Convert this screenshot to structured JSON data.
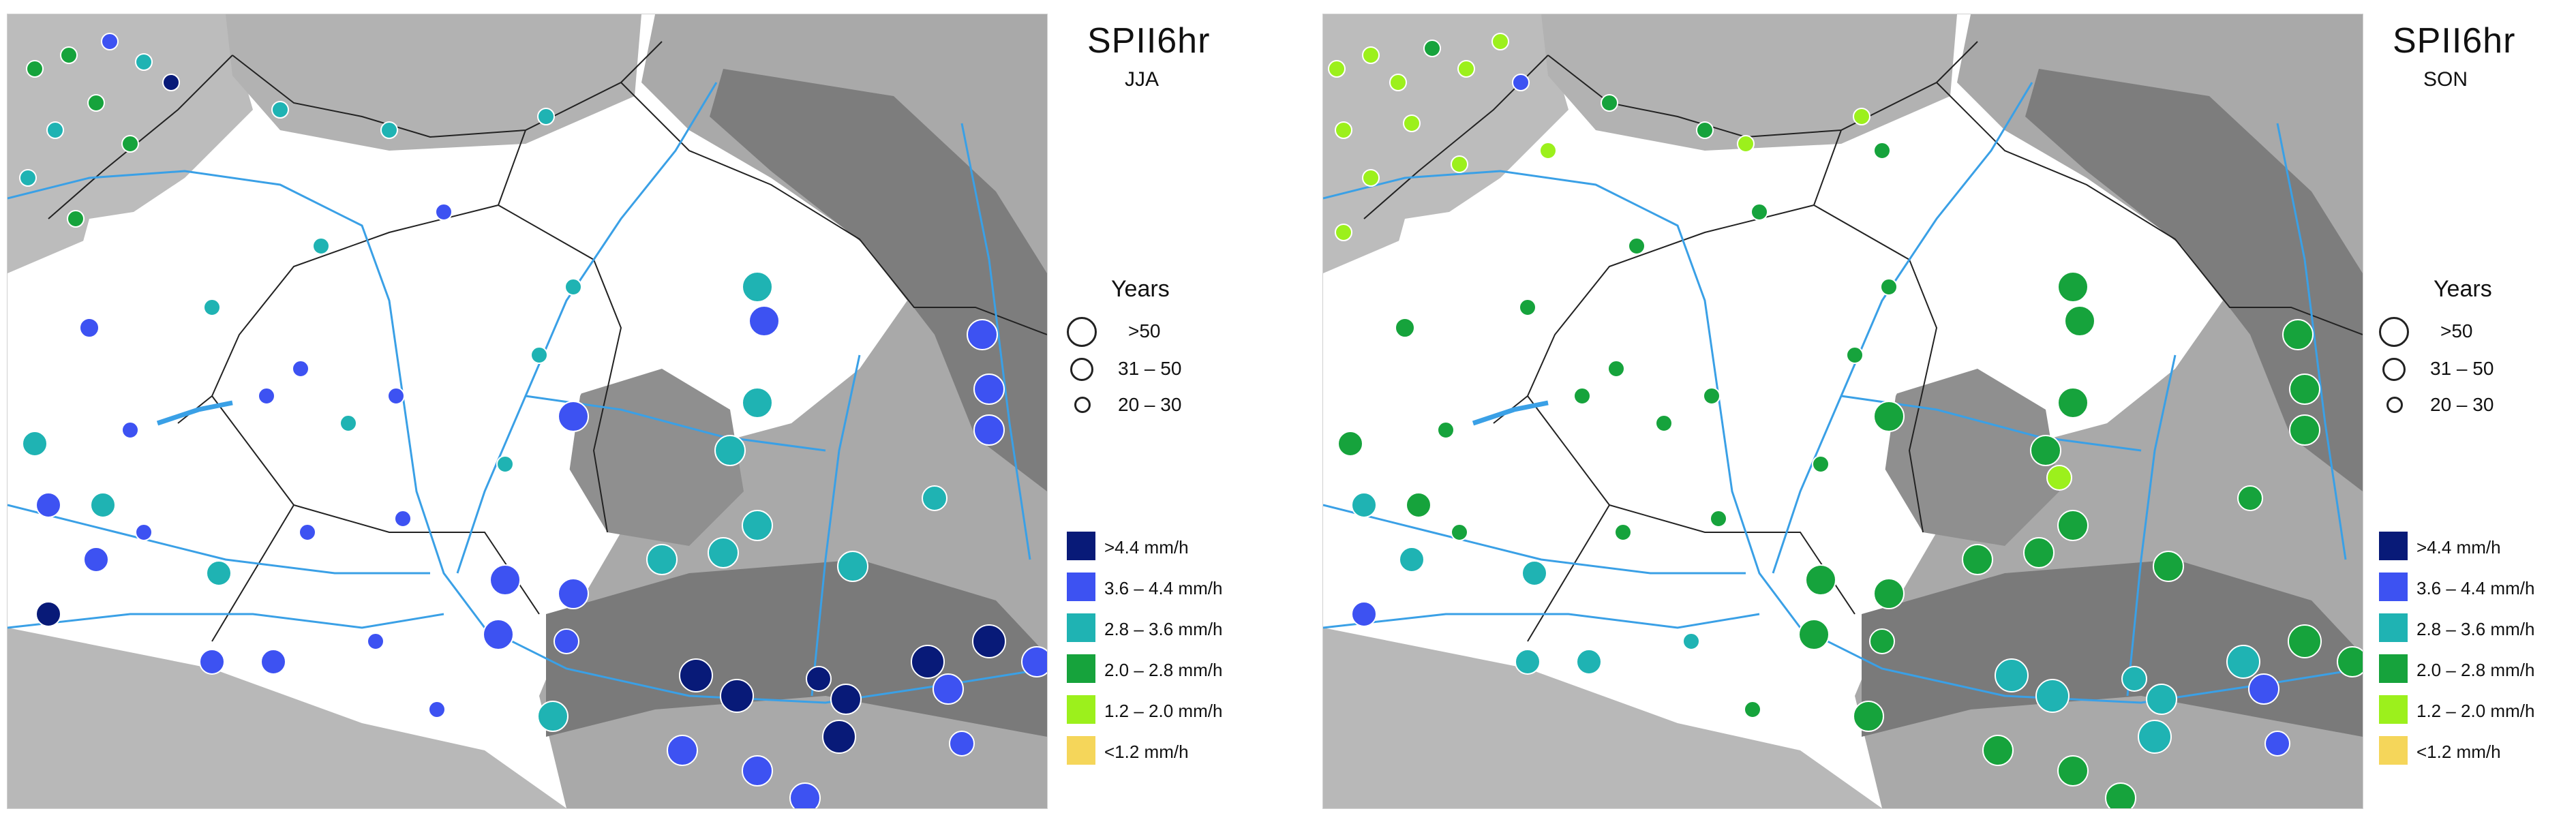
{
  "panels": [
    {
      "title": "SPII6hr",
      "season": "JJA"
    },
    {
      "title": "SPII6hr",
      "season": "SON"
    }
  ],
  "legend": {
    "years_title": "Years",
    "years_classes": [
      ">50",
      "31 – 50",
      "20 – 30"
    ],
    "intensity_classes": [
      {
        "label": ">4.4 mm/h",
        "color": "#081a78"
      },
      {
        "label": "3.6 – 4.4 mm/h",
        "color": "#3d52f2"
      },
      {
        "label": "2.8 – 3.6 mm/h",
        "color": "#1fb3b3"
      },
      {
        "label": "2.0 – 2.8 mm/h",
        "color": "#16a33c"
      },
      {
        "label": "1.2 – 2.0 mm/h",
        "color": "#9cf01c"
      },
      {
        "label": "<1.2 mm/h",
        "color": "#f5d65a"
      }
    ]
  }
}
